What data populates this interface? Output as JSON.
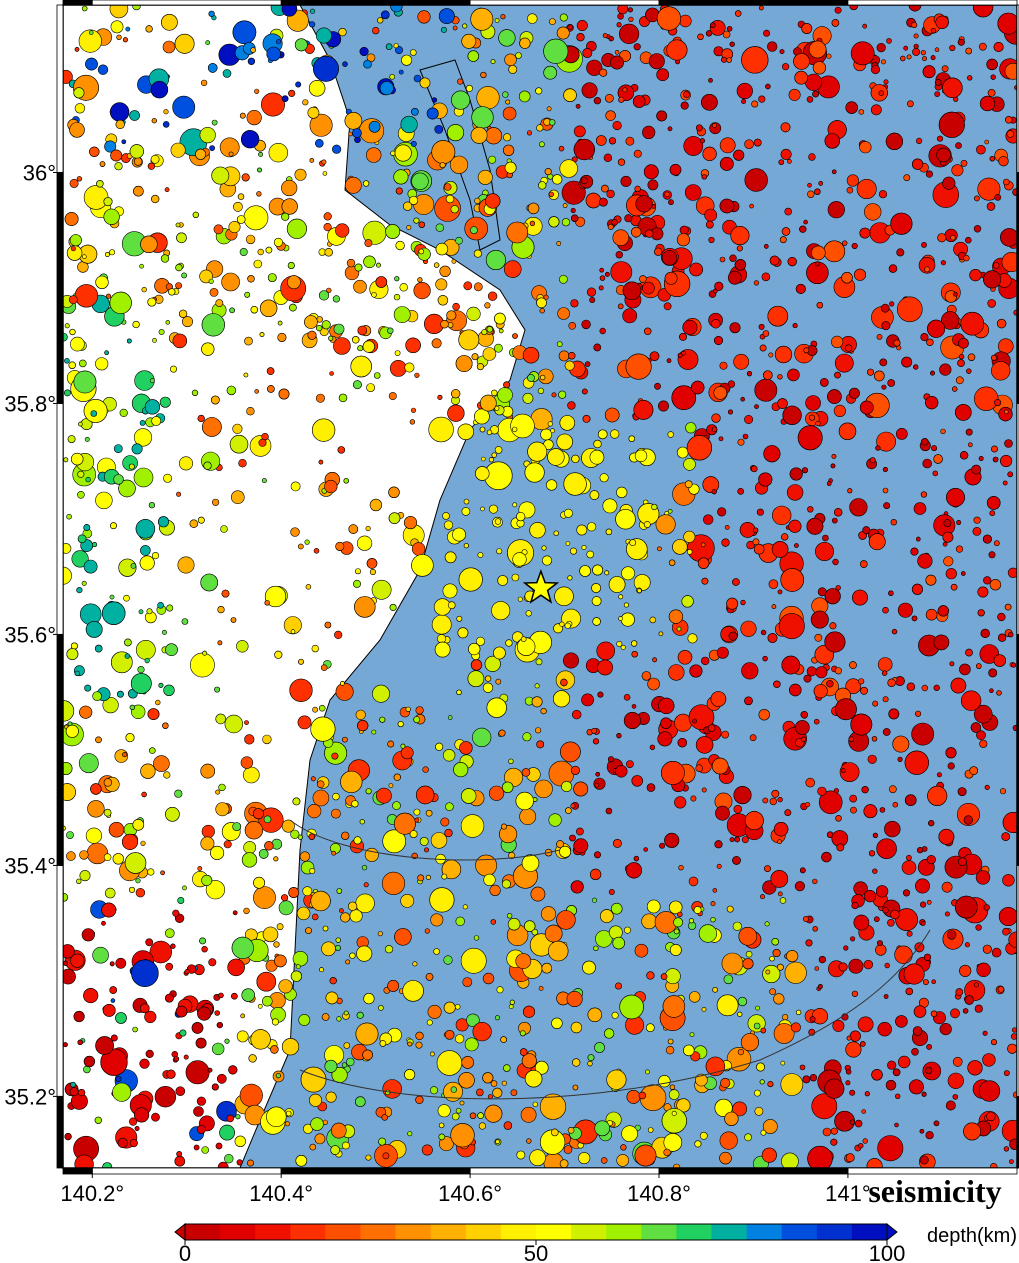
{
  "map_data": {
    "title": "seismicity",
    "xlim": [
      140.169,
      141.179
    ],
    "ylim": [
      35.138,
      36.145
    ],
    "xticks": [
      {
        "value": 140.2,
        "label": "140.2°"
      },
      {
        "value": 140.4,
        "label": "140.4°"
      },
      {
        "value": 140.6,
        "label": "140.6°"
      },
      {
        "value": 140.8,
        "label": "140.8°"
      },
      {
        "value": 141,
        "label": "141°"
      }
    ],
    "yticks": [
      {
        "value": 35.2,
        "label": "35.2°"
      },
      {
        "value": 35.4,
        "label": "35.4°"
      },
      {
        "value": 35.6,
        "label": "35.6°"
      },
      {
        "value": 35.8,
        "label": "35.8°"
      },
      {
        "value": 36,
        "label": "36°"
      }
    ],
    "epicenter": {
      "lon": 140.675,
      "lat": 35.64
    },
    "colorbar": {
      "label": "depth(km)",
      "lim": [
        0,
        100
      ],
      "ticks": [
        0,
        50,
        100
      ],
      "colors": [
        "#c80000",
        "#e00000",
        "#f01000",
        "#ff3000",
        "#ff5000",
        "#ff7000",
        "#ff9000",
        "#ffb000",
        "#ffd000",
        "#fff000",
        "#ffff00",
        "#d0f000",
        "#a0f000",
        "#60e040",
        "#20d060",
        "#00b0a0",
        "#0080e0",
        "#0050e0",
        "#0030d0",
        "#0010c0"
      ]
    }
  }
}
